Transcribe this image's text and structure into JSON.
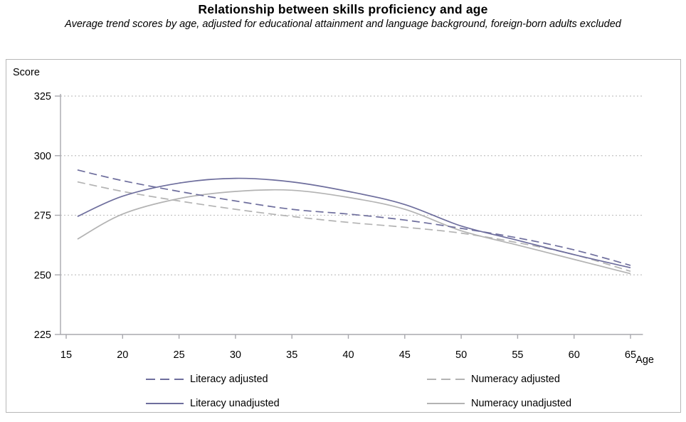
{
  "header": {
    "title": "Relationship between skills proficiency and age",
    "subtitle": "Average trend scores by age, adjusted for educational attainment and language background, foreign-born adults excluded"
  },
  "chart_data": {
    "type": "line",
    "title": "Relationship between skills proficiency and age",
    "subtitle": "Average trend scores by age, adjusted for educational attainment and language background, foreign-born adults excluded",
    "x_axis": {
      "label": "Age",
      "ticks": [
        15,
        20,
        25,
        30,
        35,
        40,
        45,
        50,
        55,
        60,
        65
      ],
      "range": [
        15,
        66
      ]
    },
    "y_axis": {
      "label": "Score",
      "ticks": [
        225,
        250,
        275,
        300,
        325
      ],
      "gridlines": [
        250,
        275,
        300,
        325
      ],
      "range": [
        225,
        325
      ]
    },
    "grid": "dotted-horizontal",
    "legend_position": "bottom",
    "x": [
      16,
      20,
      25,
      30,
      35,
      40,
      45,
      50,
      55,
      60,
      65
    ],
    "series": [
      {
        "name": "Literacy adjusted",
        "style": "dashed",
        "color": "#6e6e9d",
        "values": [
          294,
          289.5,
          285,
          281,
          277.5,
          275.5,
          273,
          269.5,
          265.5,
          260.5,
          254
        ]
      },
      {
        "name": "Numeracy adjusted",
        "style": "dashed",
        "color": "#b3b3b3",
        "values": [
          289,
          285,
          281,
          277.5,
          274.5,
          272,
          270,
          267.5,
          263.5,
          258.5,
          251.5
        ]
      },
      {
        "name": "Literacy unadjusted",
        "style": "solid",
        "color": "#6e6e9d",
        "values": [
          274.5,
          283,
          288.5,
          290.5,
          289,
          285,
          279.5,
          270.5,
          264.5,
          258.5,
          253
        ]
      },
      {
        "name": "Numeracy unadjusted",
        "style": "solid",
        "color": "#b3b3b3",
        "values": [
          265,
          275.5,
          282,
          285,
          285.5,
          282.5,
          277.5,
          268.5,
          262.5,
          256.5,
          250.5
        ]
      }
    ],
    "colors": {
      "axis": "#a8a8ae",
      "grid": "#c4c4c4",
      "border": "#b7b7b7",
      "text": "#000000"
    }
  }
}
